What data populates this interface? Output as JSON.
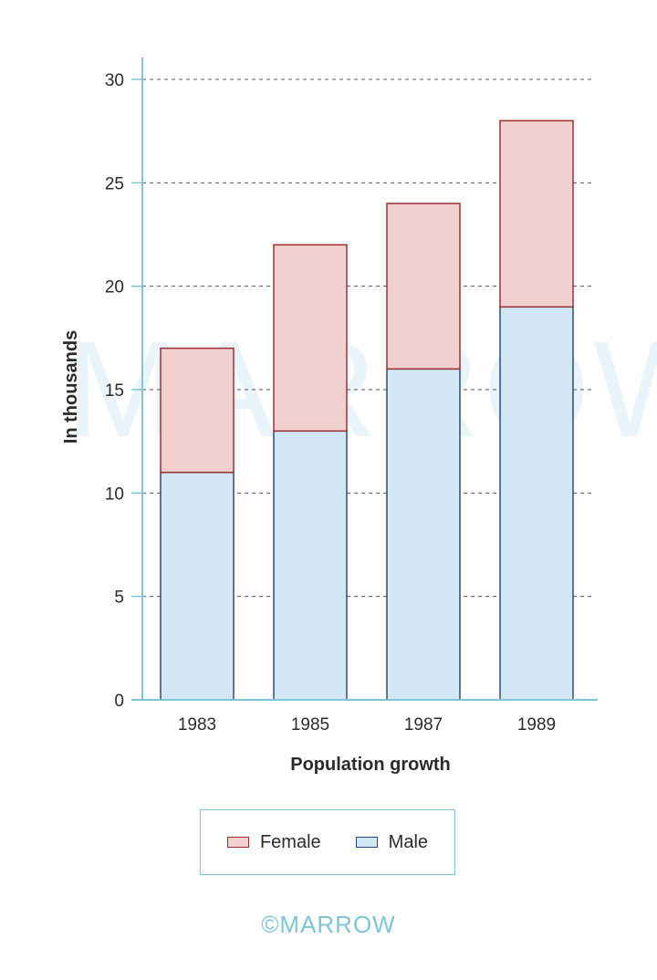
{
  "chart_data": {
    "type": "bar",
    "stacked": true,
    "categories": [
      "1983",
      "1985",
      "1987",
      "1989"
    ],
    "series": [
      {
        "name": "Male",
        "values": [
          11,
          13,
          16,
          19
        ],
        "fill": "#d3e6f4",
        "stroke": "#2d4b7a"
      },
      {
        "name": "Female",
        "values": [
          6,
          9,
          8,
          9
        ],
        "fill": "#f2d0d0",
        "stroke": "#9c3030"
      }
    ],
    "xlabel": "Population growth",
    "ylabel": "In thousands",
    "ylim": [
      0,
      30
    ],
    "yticks": [
      0,
      5,
      10,
      15,
      20,
      25,
      30
    ],
    "grid": "horizontal-dashed",
    "legend_position": "bottom",
    "axis_color": "#7fc6d3"
  },
  "watermark": "MARROW",
  "copyright": "©MARROW"
}
